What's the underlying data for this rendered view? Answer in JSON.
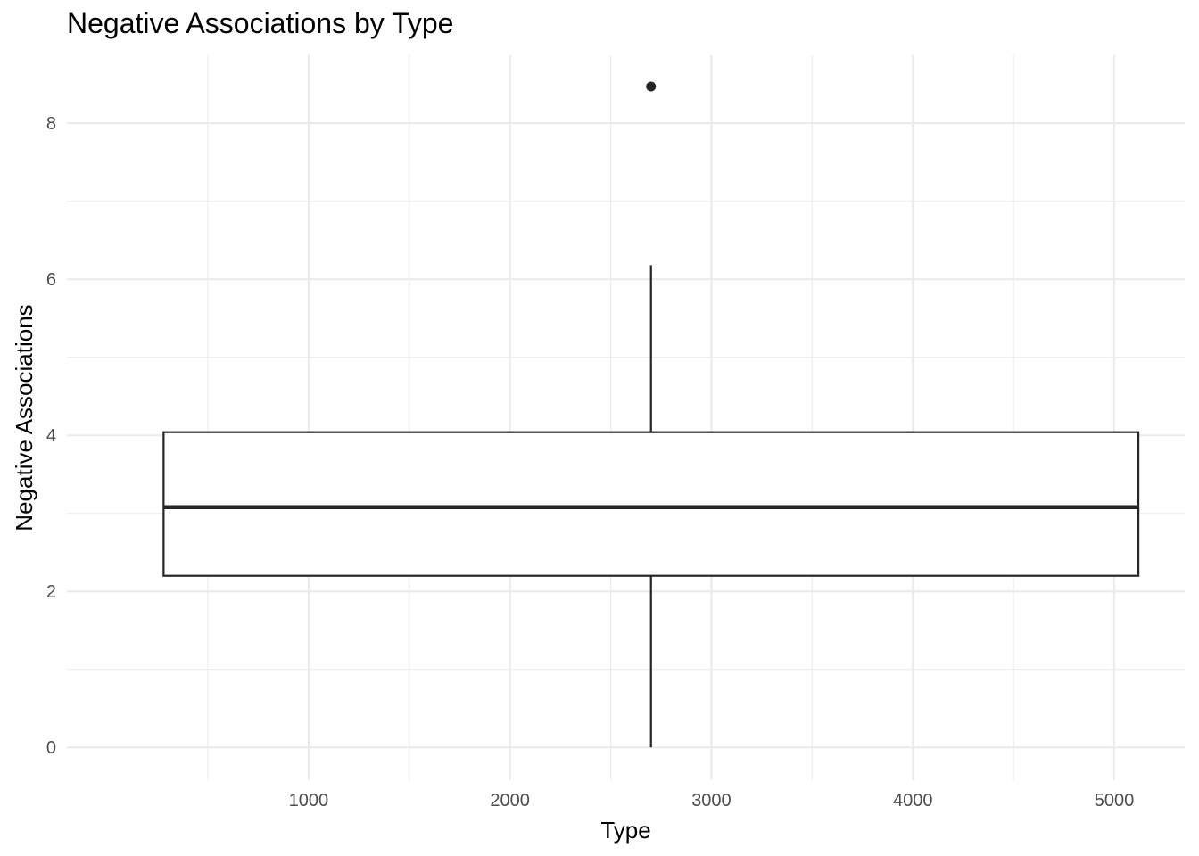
{
  "chart_data": {
    "type": "box",
    "title": "Negative Associations by Type",
    "xlabel": "Type",
    "ylabel": "Negative Associations",
    "xlim": [
      -200,
      5350
    ],
    "ylim": [
      -0.42,
      8.87
    ],
    "x_ticks": [
      1000,
      2000,
      3000,
      4000,
      5000
    ],
    "x_tick_labels": [
      "1000",
      "2000",
      "3000",
      "4000",
      "5000"
    ],
    "y_ticks": [
      0,
      2,
      4,
      6,
      8
    ],
    "y_tick_labels": [
      "0",
      "2",
      "4",
      "6",
      "8"
    ],
    "grid": true,
    "box": {
      "x_center": 2700,
      "x_range": [
        280,
        5120
      ],
      "whisker_low": 0,
      "q1": 2.2,
      "median": 3.08,
      "q3": 4.04,
      "whisker_high": 6.18
    },
    "outliers": [
      {
        "x": 2700,
        "y": 8.47
      }
    ],
    "colors": {
      "grid": "#ebebeb",
      "box_line": "#262626",
      "box_fill": "#ffffff",
      "tick_text": "#4d4d4d"
    }
  }
}
